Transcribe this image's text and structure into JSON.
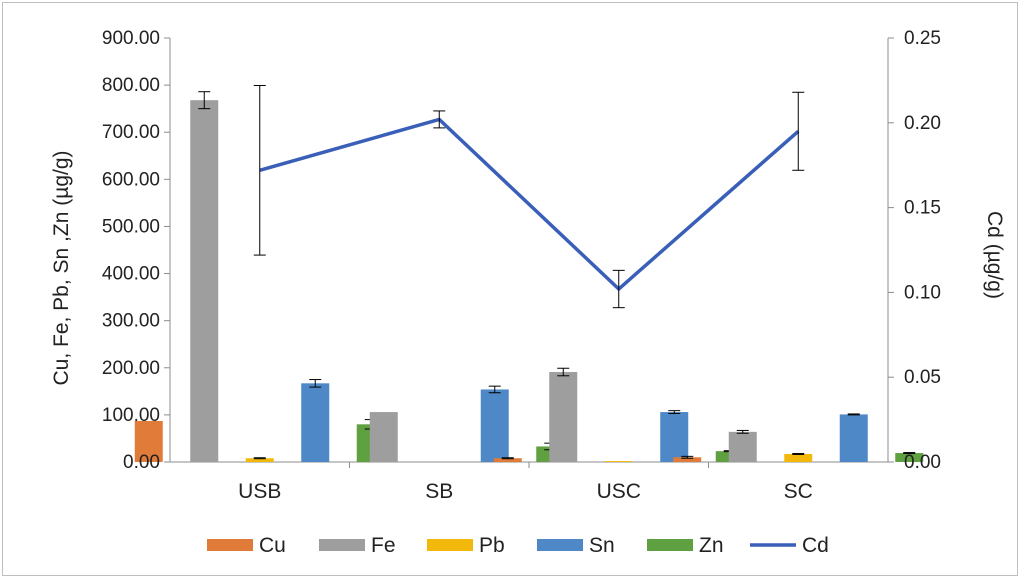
{
  "chart_data": {
    "type": "bar",
    "categories": [
      "USB",
      "SB",
      "USC",
      "SC"
    ],
    "ylabel": "Cu, Fe, Pb, Sn ,Zn (µg/g)",
    "y2label": "Cd (µg/g)",
    "ylim": [
      0,
      900
    ],
    "y2lim": [
      0,
      0.25
    ],
    "y_ticks": [
      "0.00",
      "100.00",
      "200.00",
      "300.00",
      "400.00",
      "500.00",
      "600.00",
      "700.00",
      "800.00",
      "900.00"
    ],
    "y2_ticks": [
      "0.00",
      "0.05",
      "0.10",
      "0.15",
      "0.20",
      "0.25"
    ],
    "grid": false,
    "legend_position": "bottom",
    "series": [
      {
        "name": "Cu",
        "type": "bar",
        "color": "#e07b39",
        "values": [
          87,
          0,
          8,
          10
        ],
        "errors": [
          0,
          0,
          1,
          2
        ]
      },
      {
        "name": "Fe",
        "type": "bar",
        "color": "#9e9e9e",
        "values": [
          768,
          106,
          191,
          64
        ],
        "errors": [
          18,
          0,
          8,
          3
        ]
      },
      {
        "name": "Pb",
        "type": "bar",
        "color": "#f2b90c",
        "values": [
          8,
          0,
          2,
          17
        ],
        "errors": [
          1,
          0,
          0,
          1
        ]
      },
      {
        "name": "Sn",
        "type": "bar",
        "color": "#4e88c7",
        "values": [
          167,
          154,
          106,
          101
        ],
        "errors": [
          8,
          7,
          3,
          1
        ]
      },
      {
        "name": "Zn",
        "type": "bar",
        "color": "#5fa041",
        "values": [
          80,
          33,
          23,
          19
        ],
        "errors": [
          10,
          7,
          1,
          1
        ]
      },
      {
        "name": "Cd",
        "type": "line",
        "axis": "y2",
        "color": "#3a5fb8",
        "values": [
          0.172,
          0.202,
          0.102,
          0.195
        ],
        "errors": [
          0.05,
          0.005,
          0.011,
          0.023
        ]
      }
    ]
  }
}
